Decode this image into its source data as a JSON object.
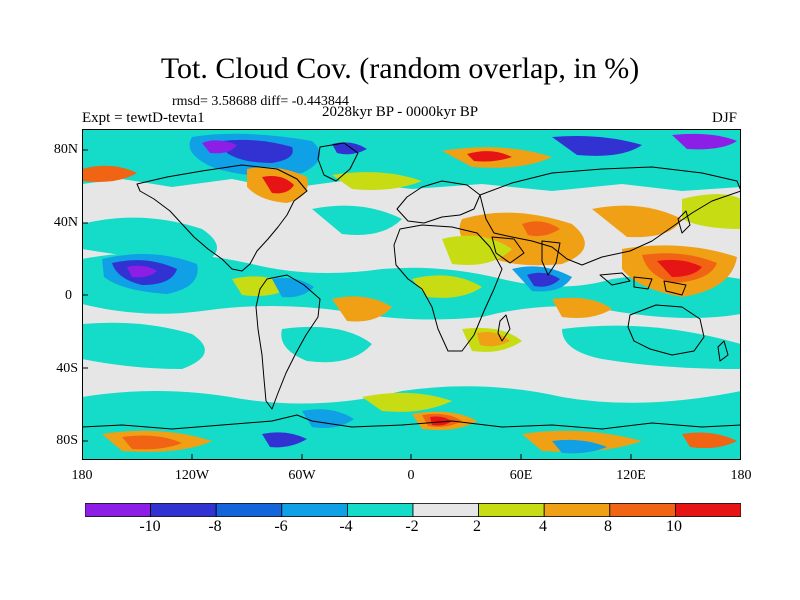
{
  "figure": {
    "title": "Tot. Cloud Cov. (random overlap, in %)",
    "stats": "rmsd= 3.58688 diff= -0.443844",
    "period": "2028kyr BP - 0000kyr BP",
    "experiment": "Expt = tewtD-tevta1",
    "season": "DJF"
  },
  "axes": {
    "lon_labels": [
      "180",
      "120W",
      "60W",
      "0",
      "60E",
      "120E",
      "180"
    ],
    "lat_labels": [
      "80N",
      "40N",
      "0",
      "40S",
      "80S"
    ]
  },
  "colorbar": {
    "labels": [
      "-10",
      "-8",
      "-6",
      "-4",
      "-2",
      "2",
      "4",
      "8",
      "10"
    ],
    "colors": [
      "#8c1ee6",
      "#3232d2",
      "#1464dc",
      "#0fa0e6",
      "#14dcc8",
      "#e6e6e6",
      "#c8dc14",
      "#f0a014",
      "#f06414",
      "#e61414"
    ]
  },
  "map": {
    "background_color": "#e6e6e6",
    "coastline_color": "#000000"
  }
}
